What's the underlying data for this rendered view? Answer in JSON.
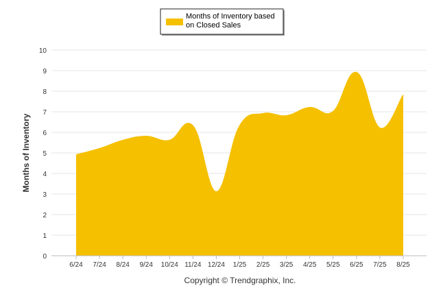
{
  "chart_data": {
    "type": "area",
    "categories": [
      "6/24",
      "7/24",
      "8/24",
      "9/24",
      "10/24",
      "11/24",
      "12/24",
      "1/25",
      "2/25",
      "3/25",
      "4/25",
      "5/25",
      "6/25",
      "7/25",
      "8/25"
    ],
    "series": [
      {
        "name": "Months of Inventory based on Closed Sales",
        "values": [
          4.9,
          5.2,
          5.6,
          5.8,
          5.6,
          6.3,
          3.1,
          6.3,
          6.9,
          6.8,
          7.2,
          7.0,
          8.9,
          6.2,
          7.8
        ],
        "color": "#F5C000"
      }
    ],
    "legend": {
      "label_line1": "Months of Inventory based",
      "label_line2": "on Closed Sales",
      "position": "top-center"
    },
    "ylabel": "Months of Inventory",
    "xlabel": "",
    "ylim": [
      0,
      10
    ],
    "yticks": [
      0,
      1,
      2,
      3,
      4,
      5,
      6,
      7,
      8,
      9,
      10
    ],
    "grid": true,
    "credit": "Copyright © Trendgraphix, Inc."
  }
}
